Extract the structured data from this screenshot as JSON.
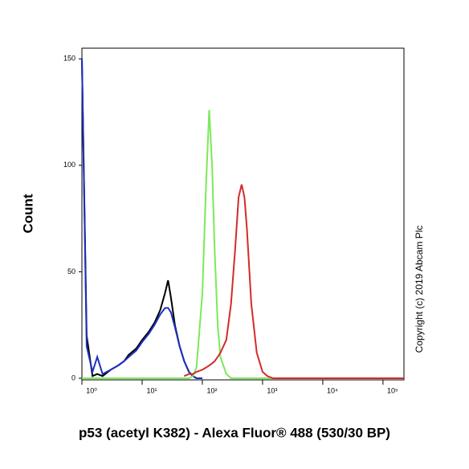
{
  "chart_data": {
    "type": "line",
    "log_x": true,
    "x_label": "p53 (acetyl K382) - Alexa Fluor® 488 (530/30 BP)",
    "y_label": "Count",
    "annotation": "Copyright (c) 2019 Abcam Plc",
    "x": [
      1,
      1.2,
      1.5,
      1.8,
      2.2,
      3,
      4,
      5,
      6,
      8,
      10,
      13,
      16,
      20,
      24,
      27,
      30,
      35,
      42,
      50,
      60,
      70,
      80,
      100,
      115,
      130,
      145,
      160,
      180,
      200,
      250,
      300,
      350,
      400,
      450,
      500,
      550,
      650,
      800,
      1000,
      1200,
      1500,
      3000,
      10000,
      100000,
      223000
    ],
    "series": [
      {
        "color": "#000000",
        "values": [
          150,
          20,
          1,
          2,
          1,
          4,
          6,
          8,
          11,
          14,
          18,
          22,
          26,
          32,
          40,
          46,
          38,
          25,
          15,
          8,
          3,
          1,
          0,
          0,
          null,
          null,
          null,
          null,
          null,
          null,
          null,
          null,
          null,
          null,
          null,
          null,
          null,
          null,
          null,
          null,
          null,
          null,
          null,
          null,
          null,
          null
        ]
      },
      {
        "color": "#1f2fbf",
        "values": [
          150,
          15,
          3,
          10,
          2,
          4,
          6,
          8,
          10,
          13,
          17,
          21,
          25,
          30,
          33,
          33,
          31,
          24,
          15,
          8,
          3,
          1,
          0,
          0,
          null,
          null,
          null,
          null,
          null,
          null,
          null,
          null,
          null,
          null,
          null,
          null,
          null,
          null,
          null,
          null,
          null,
          null,
          null,
          null,
          null,
          null
        ]
      },
      {
        "color": "#7de85a",
        "values": [
          0,
          0,
          0,
          0,
          0,
          0,
          0,
          0,
          0,
          0,
          0,
          0,
          0,
          0,
          0,
          0,
          0,
          0,
          0,
          0,
          0,
          1,
          5,
          40,
          90,
          126,
          100,
          60,
          25,
          10,
          2,
          0,
          0,
          0,
          0,
          0,
          0,
          0,
          0,
          0,
          0,
          0,
          0,
          0,
          0,
          0
        ]
      },
      {
        "color": "#d42a2a",
        "values": [
          null,
          null,
          null,
          null,
          null,
          null,
          null,
          null,
          null,
          null,
          null,
          null,
          null,
          null,
          null,
          null,
          null,
          null,
          null,
          1,
          2,
          2,
          3,
          4,
          5,
          6,
          7,
          8,
          10,
          12,
          18,
          35,
          60,
          85,
          91,
          85,
          70,
          35,
          12,
          3,
          1,
          0,
          0,
          0,
          0,
          0
        ]
      }
    ],
    "xlim": [
      1,
      223000
    ],
    "ylim": [
      0,
      155
    ],
    "xticks": [
      {
        "value": 1,
        "label": "10⁰"
      },
      {
        "value": 10,
        "label": "10¹"
      },
      {
        "value": 100,
        "label": "10²"
      },
      {
        "value": 1000,
        "label": "10³"
      },
      {
        "value": 10000,
        "label": "10⁴"
      },
      {
        "value": 100000,
        "label": "10⁵"
      }
    ],
    "yticks": [
      0,
      50,
      100,
      150
    ]
  }
}
